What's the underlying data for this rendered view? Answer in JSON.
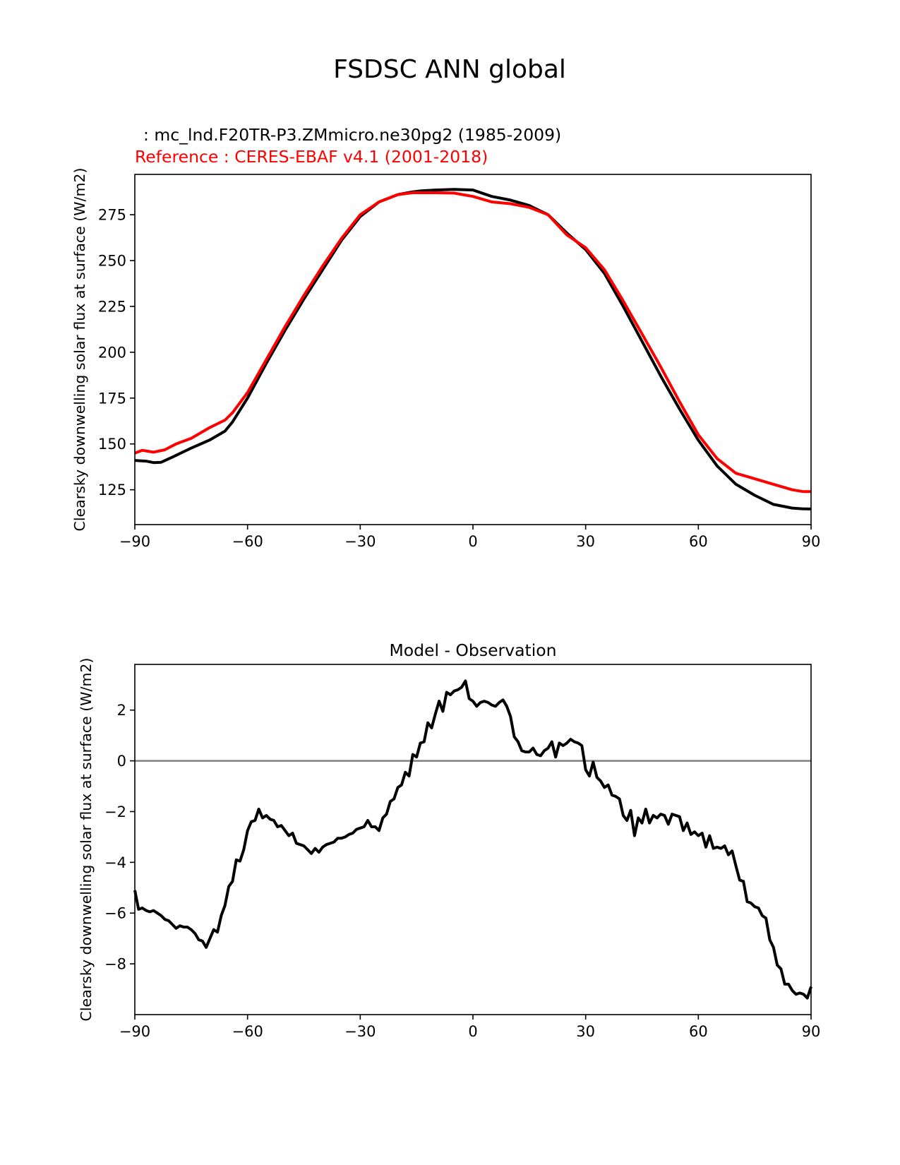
{
  "figure": {
    "title": "FSDSC ANN global"
  },
  "chart_data": [
    {
      "type": "line",
      "test_label": " : mc_lnd.F20TR-P3.ZMmicro.ne30pg2 (1985-2009)",
      "ref_label": "Reference : CERES-EBAF v4.1 (2001-2018)",
      "ylabel": "Clearsky downwelling solar flux at surface (W/m2)",
      "xlim": [
        -90,
        90
      ],
      "ylim": [
        106,
        297
      ],
      "xticks": [
        -90,
        -60,
        -30,
        0,
        30,
        60,
        90
      ],
      "xtick_labels": [
        "−90",
        "−60",
        "−30",
        "0",
        "30",
        "60",
        "90"
      ],
      "yticks": [
        125,
        150,
        175,
        200,
        225,
        250,
        275
      ],
      "yticks_labels": [
        "125",
        "150",
        "175",
        "200",
        "225",
        "250",
        "275"
      ],
      "grid": false,
      "series": [
        {
          "role": "test",
          "color": "#000000",
          "x": [
            -90,
            -87,
            -85,
            -83,
            -80,
            -75,
            -70,
            -66,
            -64,
            -60,
            -55,
            -50,
            -45,
            -40,
            -35,
            -30,
            -25,
            -20,
            -16,
            -14,
            -10,
            -5,
            0,
            5,
            10,
            15,
            20,
            25,
            30,
            35,
            40,
            45,
            50,
            55,
            60,
            65,
            70,
            75,
            80,
            85,
            88,
            90
          ],
          "y": [
            141,
            140.6,
            139.8,
            140,
            142.8,
            147.7,
            152.2,
            157,
            162,
            175,
            194,
            212,
            229,
            245,
            261,
            274,
            282,
            286,
            287.5,
            288,
            288.5,
            288.8,
            288.5,
            285,
            283,
            280,
            275,
            265,
            256,
            243,
            225,
            206,
            187,
            169,
            152,
            138,
            128,
            122,
            117,
            115,
            114.6,
            114.5
          ]
        },
        {
          "role": "reference",
          "color": "#ff0000",
          "x": [
            -90,
            -88,
            -85,
            -82,
            -79,
            -75,
            -70,
            -66,
            -64,
            -60,
            -55,
            -50,
            -45,
            -40,
            -35,
            -30,
            -25,
            -20,
            -16,
            -14,
            -10,
            -5,
            0,
            5,
            10,
            15,
            20,
            25,
            30,
            35,
            40,
            45,
            50,
            55,
            60,
            65,
            70,
            75,
            80,
            85,
            88,
            90
          ],
          "y": [
            145,
            146.5,
            145.5,
            146.8,
            150,
            153,
            159,
            163,
            167,
            178,
            196,
            214,
            231,
            247,
            262,
            275,
            282,
            286,
            287,
            287,
            287,
            286.8,
            285,
            282,
            281,
            279,
            275,
            264,
            257,
            245,
            228,
            210,
            192,
            173,
            155,
            142,
            134,
            131,
            128,
            125,
            124,
            124
          ]
        }
      ]
    },
    {
      "type": "line",
      "title": "Model - Observation",
      "ylabel": "Clearsky downwelling solar flux at surface (W/m2)",
      "xlim": [
        -90,
        90
      ],
      "ylim": [
        -10,
        3.8
      ],
      "xticks": [
        -90,
        -60,
        -30,
        0,
        30,
        60,
        90
      ],
      "xtick_labels": [
        "−90",
        "−60",
        "−30",
        "0",
        "30",
        "60",
        "90"
      ],
      "yticks": [
        -8,
        -6,
        -4,
        -2,
        0,
        2
      ],
      "ytick_labels": [
        "−8",
        "−6",
        "−4",
        "−2",
        "0",
        "2"
      ],
      "zero_line": {
        "y": 0,
        "color": "#808080"
      },
      "grid": false,
      "series": [
        {
          "role": "difference",
          "color": "#000000",
          "x": [
            -90,
            -89,
            -88,
            -87,
            -86,
            -85,
            -84,
            -83,
            -82,
            -81,
            -80,
            -79,
            -78,
            -77,
            -76,
            -75,
            -74,
            -73,
            -72,
            -71,
            -70,
            -69,
            -68,
            -67,
            -66,
            -65,
            -64,
            -63,
            -62,
            -61,
            -60,
            -59,
            -58,
            -57,
            -56,
            -55,
            -54,
            -53,
            -52,
            -51,
            -50,
            -49,
            -48,
            -47,
            -46,
            -45,
            -44,
            -43,
            -42,
            -41,
            -40,
            -39,
            -38,
            -37,
            -36,
            -35,
            -34,
            -33,
            -32,
            -31,
            -30,
            -29,
            -28,
            -27,
            -26,
            -25,
            -24,
            -23,
            -22,
            -21,
            -20,
            -19,
            -18,
            -17,
            -16,
            -15,
            -14,
            -13,
            -12,
            -11,
            -10,
            -9,
            -8,
            -7,
            -6,
            -5,
            -4,
            -3,
            -2,
            -1,
            0,
            1,
            2,
            3,
            4,
            5,
            6,
            7,
            8,
            9,
            10,
            11,
            12,
            13,
            14,
            15,
            16,
            17,
            18,
            19,
            20,
            21,
            22,
            23,
            24,
            25,
            26,
            27,
            28,
            29,
            30,
            31,
            32,
            33,
            34,
            35,
            36,
            37,
            38,
            39,
            40,
            41,
            42,
            43,
            44,
            45,
            46,
            47,
            48,
            49,
            50,
            51,
            52,
            53,
            54,
            55,
            56,
            57,
            58,
            59,
            60,
            61,
            62,
            63,
            64,
            65,
            66,
            67,
            68,
            69,
            70,
            71,
            72,
            73,
            74,
            75,
            76,
            77,
            78,
            79,
            80,
            81,
            82,
            83,
            84,
            85,
            86,
            87,
            88,
            89,
            90
          ],
          "y": [
            -5.1,
            -5.85,
            -5.8,
            -5.9,
            -5.95,
            -5.9,
            -6.0,
            -6.1,
            -6.25,
            -6.3,
            -6.45,
            -6.6,
            -6.5,
            -6.55,
            -6.55,
            -6.65,
            -6.8,
            -7.05,
            -7.1,
            -7.35,
            -7.0,
            -6.65,
            -6.75,
            -6.1,
            -5.7,
            -4.95,
            -4.75,
            -3.9,
            -3.95,
            -3.5,
            -2.75,
            -2.4,
            -2.35,
            -1.9,
            -2.25,
            -2.15,
            -2.3,
            -2.35,
            -2.6,
            -2.55,
            -2.75,
            -2.95,
            -2.85,
            -3.25,
            -3.3,
            -3.35,
            -3.5,
            -3.65,
            -3.45,
            -3.6,
            -3.4,
            -3.3,
            -3.25,
            -3.2,
            -3.05,
            -3.05,
            -3.0,
            -2.9,
            -2.85,
            -2.7,
            -2.65,
            -2.6,
            -2.35,
            -2.6,
            -2.6,
            -2.75,
            -2.25,
            -2.1,
            -1.6,
            -1.5,
            -1.05,
            -0.95,
            -0.45,
            -0.6,
            0.25,
            0.15,
            0.7,
            0.75,
            1.5,
            1.3,
            1.85,
            2.35,
            1.95,
            2.7,
            2.6,
            2.75,
            2.8,
            2.9,
            3.15,
            2.45,
            2.35,
            2.15,
            2.3,
            2.35,
            2.3,
            2.2,
            2.15,
            2.3,
            2.4,
            2.15,
            1.75,
            0.95,
            0.75,
            0.4,
            0.35,
            0.35,
            0.5,
            0.25,
            0.2,
            0.4,
            0.5,
            0.75,
            0.15,
            0.7,
            0.6,
            0.7,
            0.85,
            0.75,
            0.7,
            0.6,
            -0.35,
            -0.6,
            -0.05,
            -0.65,
            -0.8,
            -1.05,
            -0.95,
            -1.35,
            -1.4,
            -1.5,
            -2.15,
            -2.35,
            -1.95,
            -2.95,
            -2.25,
            -2.45,
            -1.9,
            -2.45,
            -2.15,
            -2.25,
            -2.1,
            -2.15,
            -2.5,
            -2.1,
            -2.15,
            -2.2,
            -2.75,
            -2.45,
            -2.9,
            -2.8,
            -2.95,
            -2.85,
            -3.4,
            -2.95,
            -3.45,
            -3.4,
            -3.45,
            -3.35,
            -3.7,
            -3.55,
            -4.15,
            -4.7,
            -4.75,
            -5.55,
            -5.6,
            -5.75,
            -5.8,
            -6.1,
            -6.2,
            -7.05,
            -7.35,
            -8.05,
            -8.2,
            -8.8,
            -8.8,
            -9.05,
            -9.2,
            -9.15,
            -9.2,
            -9.35,
            -8.9
          ]
        }
      ]
    }
  ]
}
